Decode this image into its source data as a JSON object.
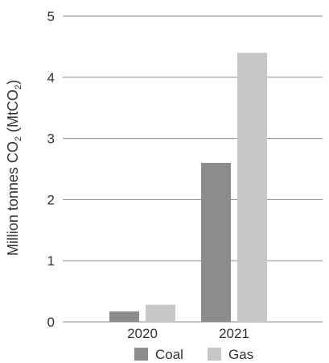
{
  "chart_data": {
    "type": "bar",
    "categories": [
      "2020",
      "2021"
    ],
    "series": [
      {
        "name": "Coal",
        "values": [
          0.17,
          2.6
        ],
        "color": "#8c8c8c"
      },
      {
        "name": "Gas",
        "values": [
          0.28,
          4.4
        ],
        "color": "#c7c7c7"
      }
    ],
    "ylabel": {
      "main": "Million tonnes CO",
      "sub1": "2",
      "mid": " (MtCO",
      "sub2": "2",
      "end": ")"
    },
    "xlabel": "",
    "ylim": [
      0,
      5
    ],
    "yticks": [
      "0",
      "1",
      "2",
      "3",
      "4",
      "5"
    ],
    "grid": true,
    "gridline_color": "#8a8a8a",
    "legend_position": "bottom"
  }
}
